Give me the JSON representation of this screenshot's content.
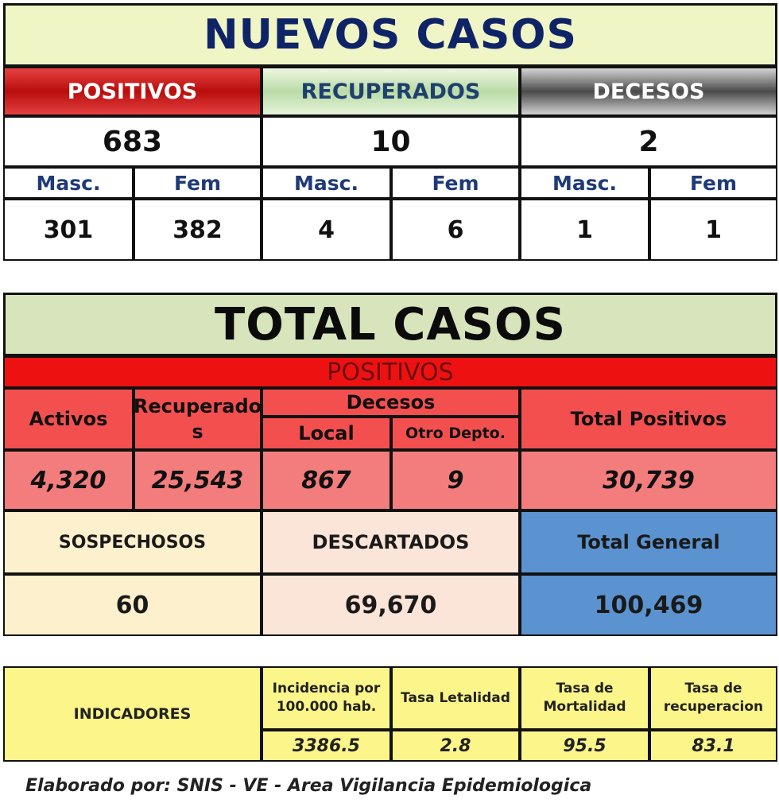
{
  "nuevos": {
    "title": "NUEVOS CASOS",
    "positivos": {
      "label": "POSITIVOS",
      "total": "683",
      "masc_label": "Masc.",
      "fem_label": "Fem",
      "masc": "301",
      "fem": "382"
    },
    "recuperados": {
      "label": "RECUPERADOS",
      "total": "10",
      "masc_label": "Masc.",
      "fem_label": "Fem",
      "masc": "4",
      "fem": "6"
    },
    "decesos": {
      "label": "DECESOS",
      "total": "2",
      "masc_label": "Masc.",
      "fem_label": "Fem",
      "masc": "1",
      "fem": "1"
    }
  },
  "total": {
    "title": "TOTAL CASOS",
    "positivos_label": "POSITIVOS",
    "headers": {
      "activos": "Activos",
      "recuperados_a": "Recuperado",
      "recuperados_b": "s",
      "decesos": "Decesos",
      "local": "Local",
      "otro_depto": "Otro Depto.",
      "total_positivos": "Total Positivos"
    },
    "values": {
      "activos": "4,320",
      "recuperados": "25,543",
      "local": "867",
      "otro_depto": "9",
      "total_positivos": "30,739"
    },
    "sospechosos_label": "SOSPECHOSOS",
    "sospechosos": "60",
    "descartados_label": "DESCARTADOS",
    "descartados": "69,670",
    "total_general_label": "Total General",
    "total_general": "100,469"
  },
  "indicadores": {
    "label": "INDICADORES",
    "incidencia_a": "Incidencia por",
    "incidencia_b": "100.000 hab.",
    "letalidad": "Tasa Letalidad",
    "mortalidad_a": "Tasa de",
    "mortalidad_b": "Mortalidad",
    "recuperacion_a": "Tasa de",
    "recuperacion_b": "recuperacion",
    "incidencia_value": "3386.5",
    "letalidad_value": "2.8",
    "mortalidad_value": "95.5",
    "recuperacion_value": "83.1"
  },
  "footer": "Elaborado por:  SNIS - VE  - Area Vigilancia Epidemiologica",
  "colors": {
    "title_navy": "#0f2466",
    "positivos_red": "#ee1111",
    "positivos_cells": "#f37d7d",
    "sospechosos_bg": "#fdf0cc",
    "descartados_bg": "#fbe5d8",
    "total_general_bg": "#5b93d0",
    "indicadores_bg": "#fbf58a"
  }
}
